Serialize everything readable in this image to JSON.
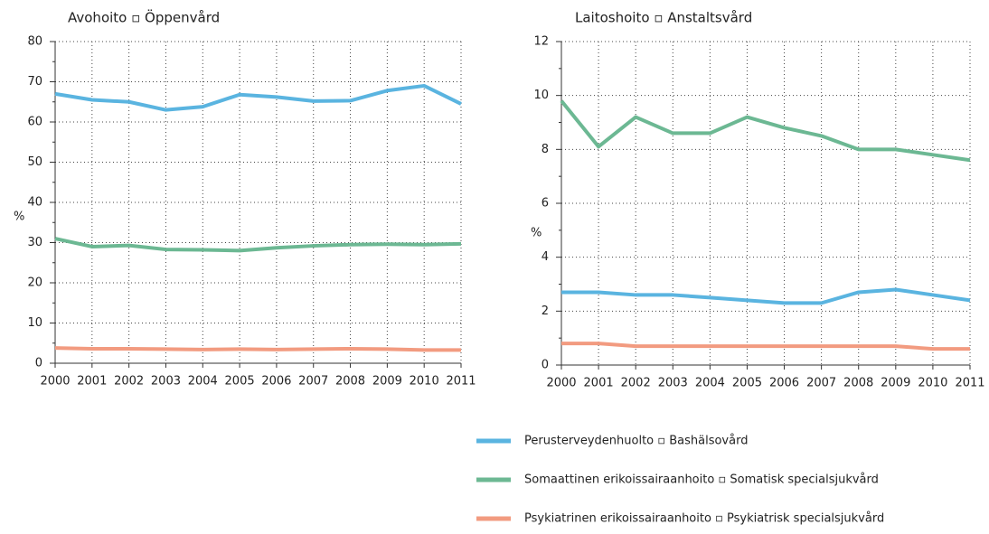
{
  "chart_data": [
    {
      "type": "line",
      "title": "Avohoito ▫ Öppenvård",
      "y_label": "%",
      "x": [
        2000,
        2001,
        2002,
        2003,
        2004,
        2005,
        2006,
        2007,
        2008,
        2009,
        2010,
        2011
      ],
      "xlim": [
        2000,
        2011
      ],
      "ylim": [
        0,
        80
      ],
      "yticks": [
        0,
        10,
        20,
        30,
        40,
        50,
        60,
        70,
        80
      ],
      "grid": true,
      "series": [
        {
          "values": [
            67,
            65.5,
            65,
            63,
            63.8,
            66.8,
            66.2,
            65.2,
            65.3,
            67.8,
            69,
            64.5
          ]
        },
        {
          "values": [
            31,
            29,
            29.3,
            28.3,
            28.2,
            28,
            28.7,
            29.2,
            29.5,
            29.6,
            29.5,
            29.7
          ]
        },
        {
          "values": [
            3.8,
            3.6,
            3.6,
            3.5,
            3.4,
            3.5,
            3.4,
            3.5,
            3.6,
            3.5,
            3.3,
            3.3
          ]
        }
      ]
    },
    {
      "type": "line",
      "title": "Laitoshoito ▫ Anstaltsvård",
      "y_label": "%",
      "x": [
        2000,
        2001,
        2002,
        2003,
        2004,
        2005,
        2006,
        2007,
        2008,
        2009,
        2010,
        2011
      ],
      "xlim": [
        2000,
        2011
      ],
      "ylim": [
        0,
        12
      ],
      "yticks": [
        0,
        2,
        4,
        6,
        8,
        10,
        12
      ],
      "grid": true,
      "series": [
        {
          "values": [
            2.7,
            2.7,
            2.6,
            2.6,
            2.5,
            2.4,
            2.3,
            2.3,
            2.7,
            2.8,
            2.6,
            2.4
          ]
        },
        {
          "values": [
            9.8,
            8.1,
            9.2,
            8.6,
            8.6,
            9.2,
            8.8,
            8.5,
            8.0,
            8.0,
            7.8,
            7.6
          ]
        },
        {
          "values": [
            0.8,
            0.8,
            0.7,
            0.7,
            0.7,
            0.7,
            0.7,
            0.7,
            0.7,
            0.7,
            0.6,
            0.6
          ]
        }
      ]
    }
  ],
  "legend": [
    {
      "name": "Perusterveydenhuolto ▫ Bashälsovård",
      "color": "#5ab4e0"
    },
    {
      "name": "Somaattinen erikoissairaanhoito ▫ Somatisk specialsjukvård",
      "color": "#6cb893"
    },
    {
      "name": "Psykiatrinen erikoissairaanhoito ▫ Psykiatrisk specialsjukvård",
      "color": "#f29b80"
    }
  ]
}
